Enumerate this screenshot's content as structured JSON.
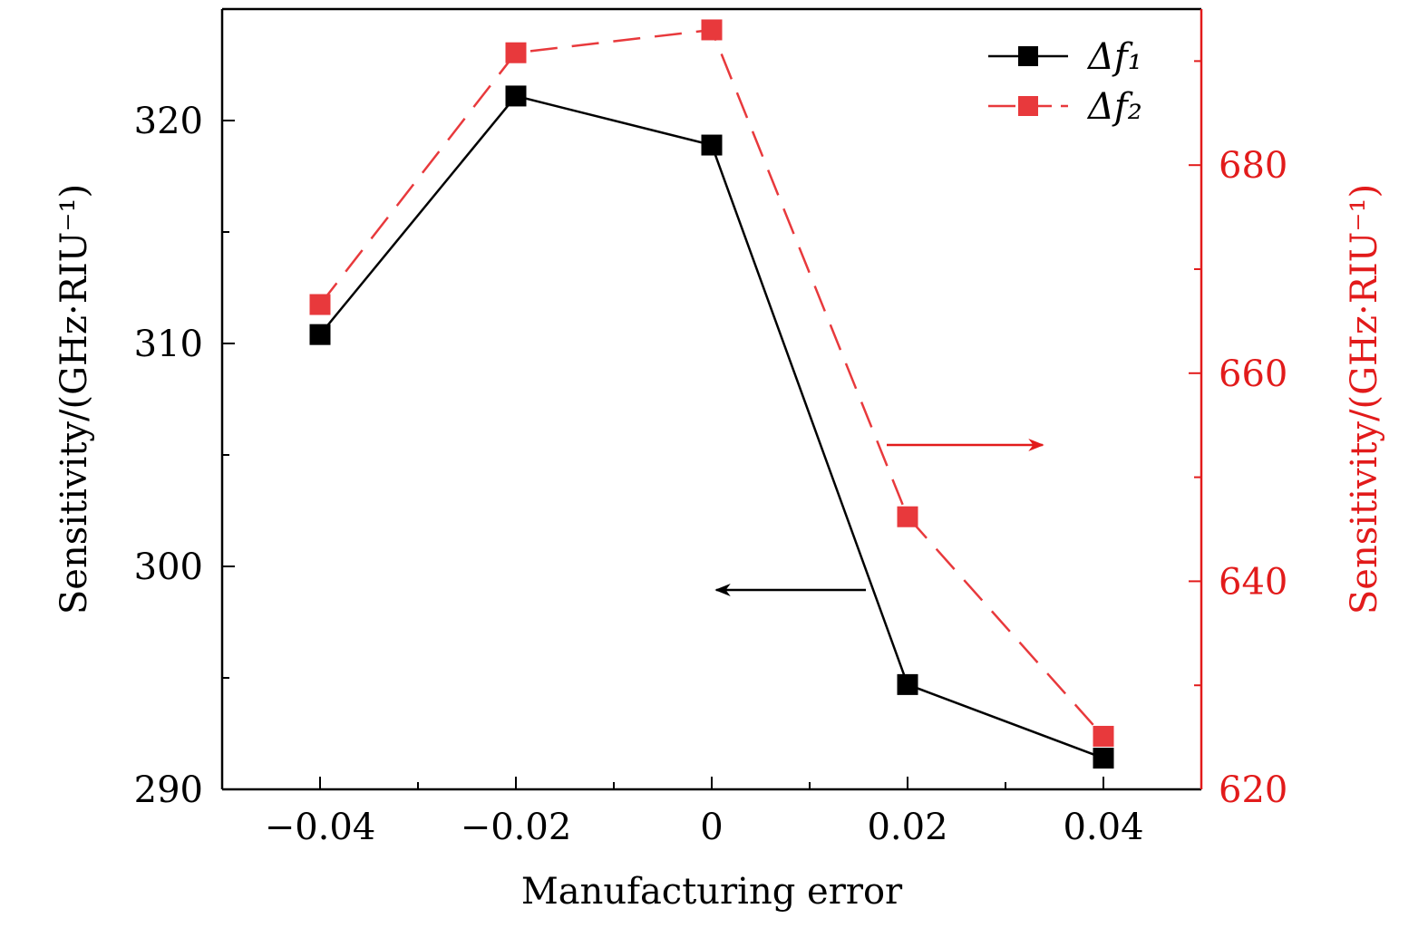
{
  "chart_data": {
    "type": "line",
    "xlabel": "Manufacturing error",
    "ylabel_left": "Sensitivity/(GHz·RIU⁻¹)",
    "ylabel_right": "Sensitivity/(GHz·RIU⁻¹)",
    "x": [
      -0.04,
      -0.02,
      0,
      0.02,
      0.04
    ],
    "x_tick_labels": [
      "−0.04",
      "−0.02",
      "0",
      "0.02",
      "0.04"
    ],
    "xlim": [
      -0.05,
      0.05
    ],
    "ylim_left": [
      290,
      325
    ],
    "ylim_right": [
      620,
      695
    ],
    "y_left_ticks": [
      290,
      300,
      310,
      320
    ],
    "y_right_ticks": [
      620,
      640,
      660,
      680
    ],
    "legend_position": "top-right",
    "grid": false,
    "series": [
      {
        "name": "Δf₁",
        "axis": "left",
        "color": "#000000",
        "line_style": "solid",
        "marker": "square",
        "values": [
          310.4,
          321.1,
          318.9,
          294.7,
          291.4
        ]
      },
      {
        "name": "Δf₂",
        "axis": "right",
        "color": "#e8393c",
        "line_style": "dashed",
        "marker": "square",
        "values": [
          666.6,
          690.8,
          693.0,
          646.2,
          625.1
        ]
      }
    ],
    "annotations": [
      {
        "type": "arrow",
        "direction": "left",
        "color": "#000000",
        "meaning": "points to left axis"
      },
      {
        "type": "arrow",
        "direction": "right",
        "color": "#e21b1b",
        "meaning": "points to right axis"
      }
    ]
  }
}
